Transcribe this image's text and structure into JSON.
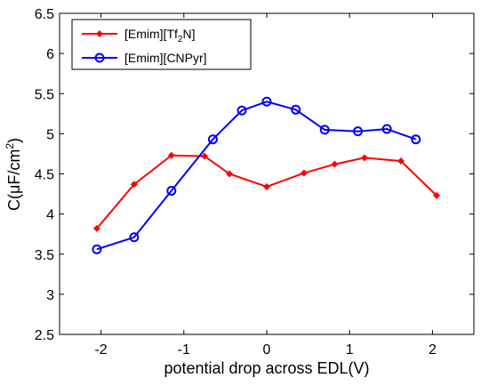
{
  "chart_data": {
    "type": "line",
    "xlabel": "potential drop across EDL(V)",
    "ylabel_main": "C(μF/cm",
    "ylabel_sup": "2",
    "ylabel_tail": ")",
    "xlim": [
      -2.5,
      2.5
    ],
    "ylim": [
      2.5,
      6.5
    ],
    "xticks": [
      -2,
      -1,
      0,
      1,
      2
    ],
    "xtick_labels": [
      "-2",
      "-1",
      "0",
      "1",
      "2"
    ],
    "yticks": [
      2.5,
      3,
      3.5,
      4,
      4.5,
      5,
      5.5,
      6,
      6.5
    ],
    "ytick_labels": [
      "2.5",
      "3",
      "3.5",
      "4",
      "4.5",
      "5",
      "5.5",
      "6",
      "6.5"
    ],
    "grid": false,
    "legend_position": "top-left",
    "series": [
      {
        "name_main": "[Emim][Tf",
        "name_sub": "2",
        "name_tail": "N]",
        "color": "#ff0000",
        "marker": "diamond",
        "x": [
          -2.05,
          -1.6,
          -1.15,
          -0.75,
          -0.45,
          0.0,
          0.45,
          0.82,
          1.18,
          1.62,
          2.05
        ],
        "y": [
          3.82,
          4.37,
          4.73,
          4.72,
          4.5,
          4.34,
          4.51,
          4.62,
          4.7,
          4.66,
          4.23
        ]
      },
      {
        "name_main": "[Emim][CNPyr]",
        "name_sub": "",
        "name_tail": "",
        "color": "#0000ff",
        "marker": "circle",
        "x": [
          -2.05,
          -1.6,
          -1.15,
          -0.65,
          -0.3,
          0.0,
          0.35,
          0.7,
          1.1,
          1.45,
          1.8
        ],
        "y": [
          3.56,
          3.71,
          4.29,
          4.93,
          5.29,
          5.4,
          5.3,
          5.05,
          5.03,
          5.06,
          4.93
        ]
      }
    ]
  }
}
